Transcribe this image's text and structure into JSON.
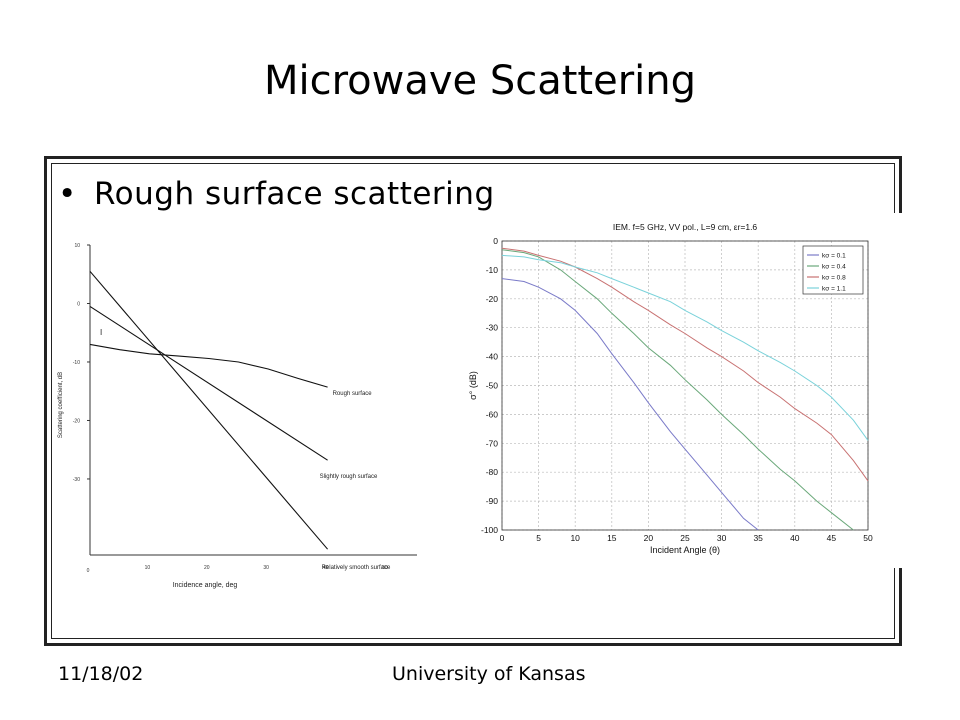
{
  "slide": {
    "title": "Microwave Scattering",
    "bullet": "Rough surface scattering",
    "footer_date": "11/18/02",
    "footer_org": "University of Kansas"
  },
  "chart_data": [
    {
      "type": "line",
      "xlabel": "Incidence angle, deg",
      "ylabel": "Scattering coefficient, dB",
      "x_ticks": [
        "0",
        "10",
        "20",
        "30",
        "40",
        "50"
      ],
      "y_ticks": [
        "10",
        "0",
        "-10",
        "-20",
        "-30"
      ],
      "xlim": [
        0,
        50
      ],
      "ylim": [
        -43,
        10
      ],
      "marker_label": "I",
      "series": [
        {
          "name": "Rough surface",
          "points": [
            [
              0,
              -7
            ],
            [
              5,
              -7.9
            ],
            [
              10,
              -8.6
            ],
            [
              15,
              -9
            ],
            [
              20,
              -9.4
            ],
            [
              25,
              -10
            ],
            [
              30,
              -11.2
            ],
            [
              35,
              -12.8
            ],
            [
              40,
              -14.3
            ]
          ]
        },
        {
          "name": "Slightly rough surface",
          "points": [
            [
              0,
              -0.5
            ],
            [
              40,
              -26.8
            ]
          ]
        },
        {
          "name": "Relatively smooth surface",
          "points": [
            [
              0,
              5.5
            ],
            [
              40,
              -42
            ]
          ]
        }
      ]
    },
    {
      "type": "line",
      "title": "IEM. f=5 GHz, VV pol., L=9 cm, εr=1.6",
      "xlabel": "Incident Angle (θ)",
      "ylabel": "σ° (dB)",
      "xlim": [
        0,
        50
      ],
      "ylim": [
        -100,
        0
      ],
      "x_ticks": [
        0,
        5,
        10,
        15,
        20,
        25,
        30,
        35,
        40,
        45,
        50
      ],
      "y_ticks": [
        0,
        -10,
        -20,
        -30,
        -40,
        -50,
        -60,
        -70,
        -80,
        -90,
        -100
      ],
      "grid": true,
      "legend": "top-right",
      "series": [
        {
          "name": "kσ = 0.1",
          "color": "#7a7ac8",
          "points": [
            [
              0,
              -13
            ],
            [
              3,
              -14
            ],
            [
              5,
              -16
            ],
            [
              8,
              -20
            ],
            [
              10,
              -24
            ],
            [
              13,
              -32
            ],
            [
              15,
              -39
            ],
            [
              18,
              -49
            ],
            [
              20,
              -56
            ],
            [
              23,
              -66
            ],
            [
              25,
              -72
            ],
            [
              28,
              -81
            ],
            [
              30,
              -87
            ],
            [
              33,
              -96
            ],
            [
              35,
              -100
            ]
          ]
        },
        {
          "name": "kσ = 0.4",
          "color": "#6aa87a",
          "points": [
            [
              0,
              -3
            ],
            [
              3,
              -4
            ],
            [
              5,
              -5.5
            ],
            [
              8,
              -10
            ],
            [
              10,
              -14
            ],
            [
              13,
              -20
            ],
            [
              15,
              -25
            ],
            [
              18,
              -32
            ],
            [
              20,
              -37
            ],
            [
              23,
              -43
            ],
            [
              25,
              -48
            ],
            [
              28,
              -55
            ],
            [
              30,
              -60
            ],
            [
              33,
              -67
            ],
            [
              35,
              -72
            ],
            [
              38,
              -79
            ],
            [
              40,
              -83
            ],
            [
              43,
              -90
            ],
            [
              45,
              -94
            ],
            [
              48,
              -100
            ]
          ]
        },
        {
          "name": "kσ = 0.8",
          "color": "#c87272",
          "points": [
            [
              0,
              -2.5
            ],
            [
              3,
              -3.5
            ],
            [
              5,
              -5
            ],
            [
              8,
              -7
            ],
            [
              10,
              -9
            ],
            [
              13,
              -13
            ],
            [
              15,
              -16
            ],
            [
              18,
              -21
            ],
            [
              20,
              -24
            ],
            [
              23,
              -29
            ],
            [
              25,
              -32
            ],
            [
              28,
              -37
            ],
            [
              30,
              -40
            ],
            [
              33,
              -45
            ],
            [
              35,
              -49
            ],
            [
              38,
              -54
            ],
            [
              40,
              -58
            ],
            [
              43,
              -63
            ],
            [
              45,
              -67
            ],
            [
              48,
              -76
            ],
            [
              50,
              -83
            ]
          ]
        },
        {
          "name": "kσ = 1.1",
          "color": "#7ad2da",
          "points": [
            [
              0,
              -5
            ],
            [
              3,
              -5.5
            ],
            [
              5,
              -6.5
            ],
            [
              8,
              -7.5
            ],
            [
              10,
              -9
            ],
            [
              13,
              -11
            ],
            [
              15,
              -13
            ],
            [
              18,
              -16
            ],
            [
              20,
              -18
            ],
            [
              23,
              -21
            ],
            [
              25,
              -24
            ],
            [
              28,
              -28
            ],
            [
              30,
              -31
            ],
            [
              33,
              -35
            ],
            [
              35,
              -38
            ],
            [
              38,
              -42
            ],
            [
              40,
              -45
            ],
            [
              43,
              -50
            ],
            [
              45,
              -54
            ],
            [
              48,
              -62
            ],
            [
              50,
              -69
            ]
          ]
        }
      ]
    }
  ]
}
